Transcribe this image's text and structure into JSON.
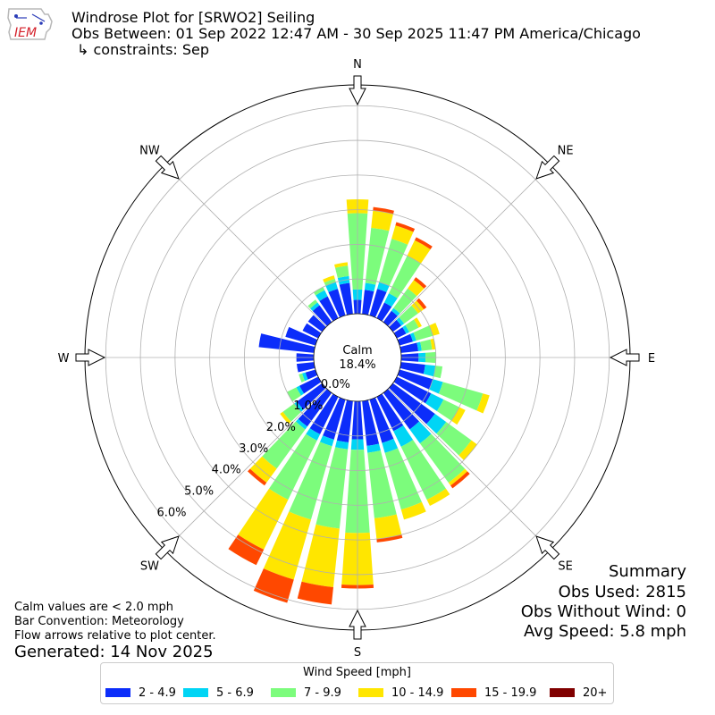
{
  "header": {
    "title": "Windrose Plot for [SRWO2] Seiling",
    "obs_between": "Obs Between: 01 Sep 2022 12:47 AM - 30 Sep 2025 11:47 PM America/Chicago",
    "constraints": "↳ constraints: Sep",
    "logo_text": "IEM"
  },
  "summary": {
    "heading": "Summary",
    "obs_used": "Obs Used: 2815",
    "obs_without_wind": "Obs Without Wind: 0",
    "avg_speed": "Avg Speed: 5.8 mph"
  },
  "notes": {
    "calm_note": "Calm values are < 2.0 mph",
    "bar_convention": "Bar Convention: Meteorology",
    "flow_arrows": "Flow arrows relative to plot center.",
    "generated": "Generated: 14 Nov 2025"
  },
  "chart_data": {
    "type": "windrose",
    "calm_label": "Calm",
    "calm_value": "18.4%",
    "calm_percent": 18.4,
    "cardinal_labels": [
      "N",
      "NE",
      "E",
      "SE",
      "S",
      "SW",
      "W",
      "NW"
    ],
    "radial_ticks": [
      "0.0%",
      "1.0%",
      "2.0%",
      "3.0%",
      "4.0%",
      "5.0%",
      "6.0%"
    ],
    "radial_tick_values": [
      0,
      1,
      2,
      3,
      4,
      5,
      6
    ],
    "rmax": 6.6,
    "grid": true,
    "bar_convention": "meteorology",
    "legend": {
      "title": "Wind Speed [mph]",
      "placement": "bottom-center",
      "bins": [
        "2 - 4.9",
        "5 - 6.9",
        "7 - 9.9",
        "10 - 14.9",
        "15 - 19.9",
        "20+"
      ],
      "colors": [
        "#0c2dfa",
        "#00d5f5",
        "#7cfc7c",
        "#ffe600",
        "#ff4800",
        "#800000"
      ]
    },
    "direction_unit": "degrees (10° bins, direction wind blows from)",
    "directions": [
      0,
      10,
      20,
      30,
      40,
      50,
      60,
      70,
      80,
      90,
      100,
      110,
      120,
      130,
      140,
      150,
      160,
      170,
      180,
      190,
      200,
      210,
      220,
      230,
      240,
      250,
      260,
      270,
      280,
      290,
      300,
      310,
      320,
      330,
      340,
      350
    ],
    "cumulative_percent": [
      [
        0.4,
        0.7,
        2.9,
        3.3,
        3.3,
        3.3
      ],
      [
        0.7,
        0.9,
        2.5,
        3.0,
        3.1,
        3.1
      ],
      [
        0.8,
        1.0,
        2.3,
        2.7,
        2.8,
        2.8
      ],
      [
        0.5,
        0.8,
        2.0,
        2.5,
        2.6,
        2.6
      ],
      [
        0.4,
        0.5,
        1.2,
        1.5,
        1.6,
        1.6
      ],
      [
        0.3,
        0.4,
        0.9,
        1.1,
        1.2,
        1.2
      ],
      [
        0.3,
        0.4,
        0.7,
        0.8,
        0.8,
        0.8
      ],
      [
        0.4,
        0.5,
        1.0,
        1.2,
        1.2,
        1.2
      ],
      [
        0.5,
        0.6,
        0.9,
        1.0,
        1.0,
        1.0
      ],
      [
        0.5,
        0.7,
        1.0,
        1.0,
        1.0,
        1.0
      ],
      [
        0.7,
        1.0,
        1.2,
        1.2,
        1.2,
        1.2
      ],
      [
        1.0,
        1.3,
        2.5,
        2.7,
        2.7,
        2.7
      ],
      [
        1.1,
        1.5,
        2.0,
        2.2,
        2.2,
        2.2
      ],
      [
        1.5,
        1.9,
        2.8,
        3.0,
        3.0,
        3.0
      ],
      [
        1.3,
        1.8,
        3.2,
        3.3,
        3.4,
        3.4
      ],
      [
        1.1,
        1.6,
        3.3,
        3.5,
        3.5,
        3.5
      ],
      [
        1.3,
        1.6,
        3.3,
        3.6,
        3.6,
        3.6
      ],
      [
        1.3,
        1.5,
        3.4,
        4.0,
        4.1,
        4.1
      ],
      [
        1.1,
        1.4,
        3.8,
        5.3,
        5.4,
        5.4
      ],
      [
        1.2,
        1.4,
        3.7,
        5.4,
        5.9,
        5.9
      ],
      [
        1.2,
        1.4,
        3.6,
        5.4,
        6.1,
        6.1
      ],
      [
        1.2,
        1.4,
        3.3,
        4.9,
        5.4,
        5.4
      ],
      [
        1.2,
        1.3,
        2.7,
        3.2,
        3.3,
        3.3
      ],
      [
        0.9,
        1.0,
        1.4,
        1.5,
        1.5,
        1.5
      ],
      [
        0.6,
        0.7,
        1.0,
        1.0,
        1.0,
        1.0
      ],
      [
        0.3,
        0.4,
        0.5,
        0.5,
        0.5,
        0.5
      ],
      [
        0.5,
        0.5,
        0.5,
        0.5,
        0.5,
        0.5
      ],
      [
        0.5,
        0.5,
        0.5,
        0.5,
        0.5,
        0.5
      ],
      [
        1.6,
        1.6,
        1.6,
        1.6,
        1.6,
        1.6
      ],
      [
        0.9,
        0.9,
        0.9,
        0.9,
        0.9,
        0.9
      ],
      [
        0.5,
        0.5,
        0.5,
        0.5,
        0.5,
        0.5
      ],
      [
        0.5,
        0.5,
        0.5,
        0.5,
        0.5,
        0.5
      ],
      [
        0.6,
        0.7,
        0.8,
        0.8,
        0.8,
        0.8
      ],
      [
        0.7,
        0.9,
        1.0,
        1.0,
        1.0,
        1.0
      ],
      [
        0.8,
        1.0,
        1.1,
        1.2,
        1.2,
        1.2
      ],
      [
        0.9,
        1.1,
        1.4,
        1.5,
        1.5,
        1.5
      ]
    ]
  }
}
